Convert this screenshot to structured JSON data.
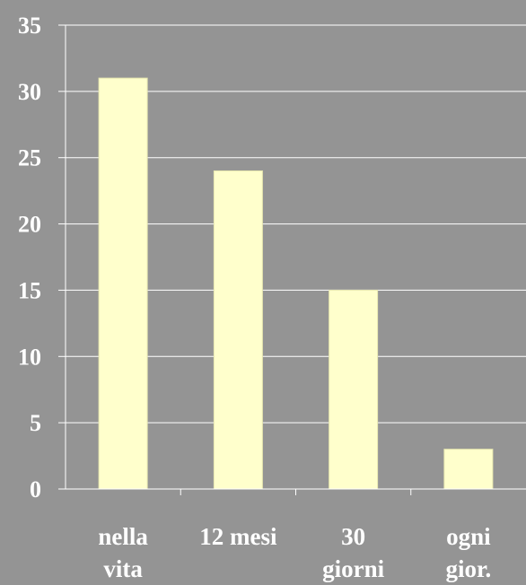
{
  "chart_data": {
    "type": "bar",
    "categories": [
      [
        "nella",
        "vita"
      ],
      [
        "12 mesi"
      ],
      [
        "30",
        "giorni"
      ],
      [
        "ogni",
        "gior."
      ]
    ],
    "values": [
      31,
      24,
      15,
      3
    ],
    "ylim": [
      0,
      35
    ],
    "yticks": [
      "0",
      "5",
      "10",
      "15",
      "20",
      "25",
      "30",
      "35"
    ],
    "grid": true,
    "legend": "none",
    "colors": {
      "background": "#949494",
      "bar": "#ffffcc",
      "bar_border": "#e8e8b0",
      "grid": "#ffffff",
      "axis": "#ffffff"
    }
  }
}
